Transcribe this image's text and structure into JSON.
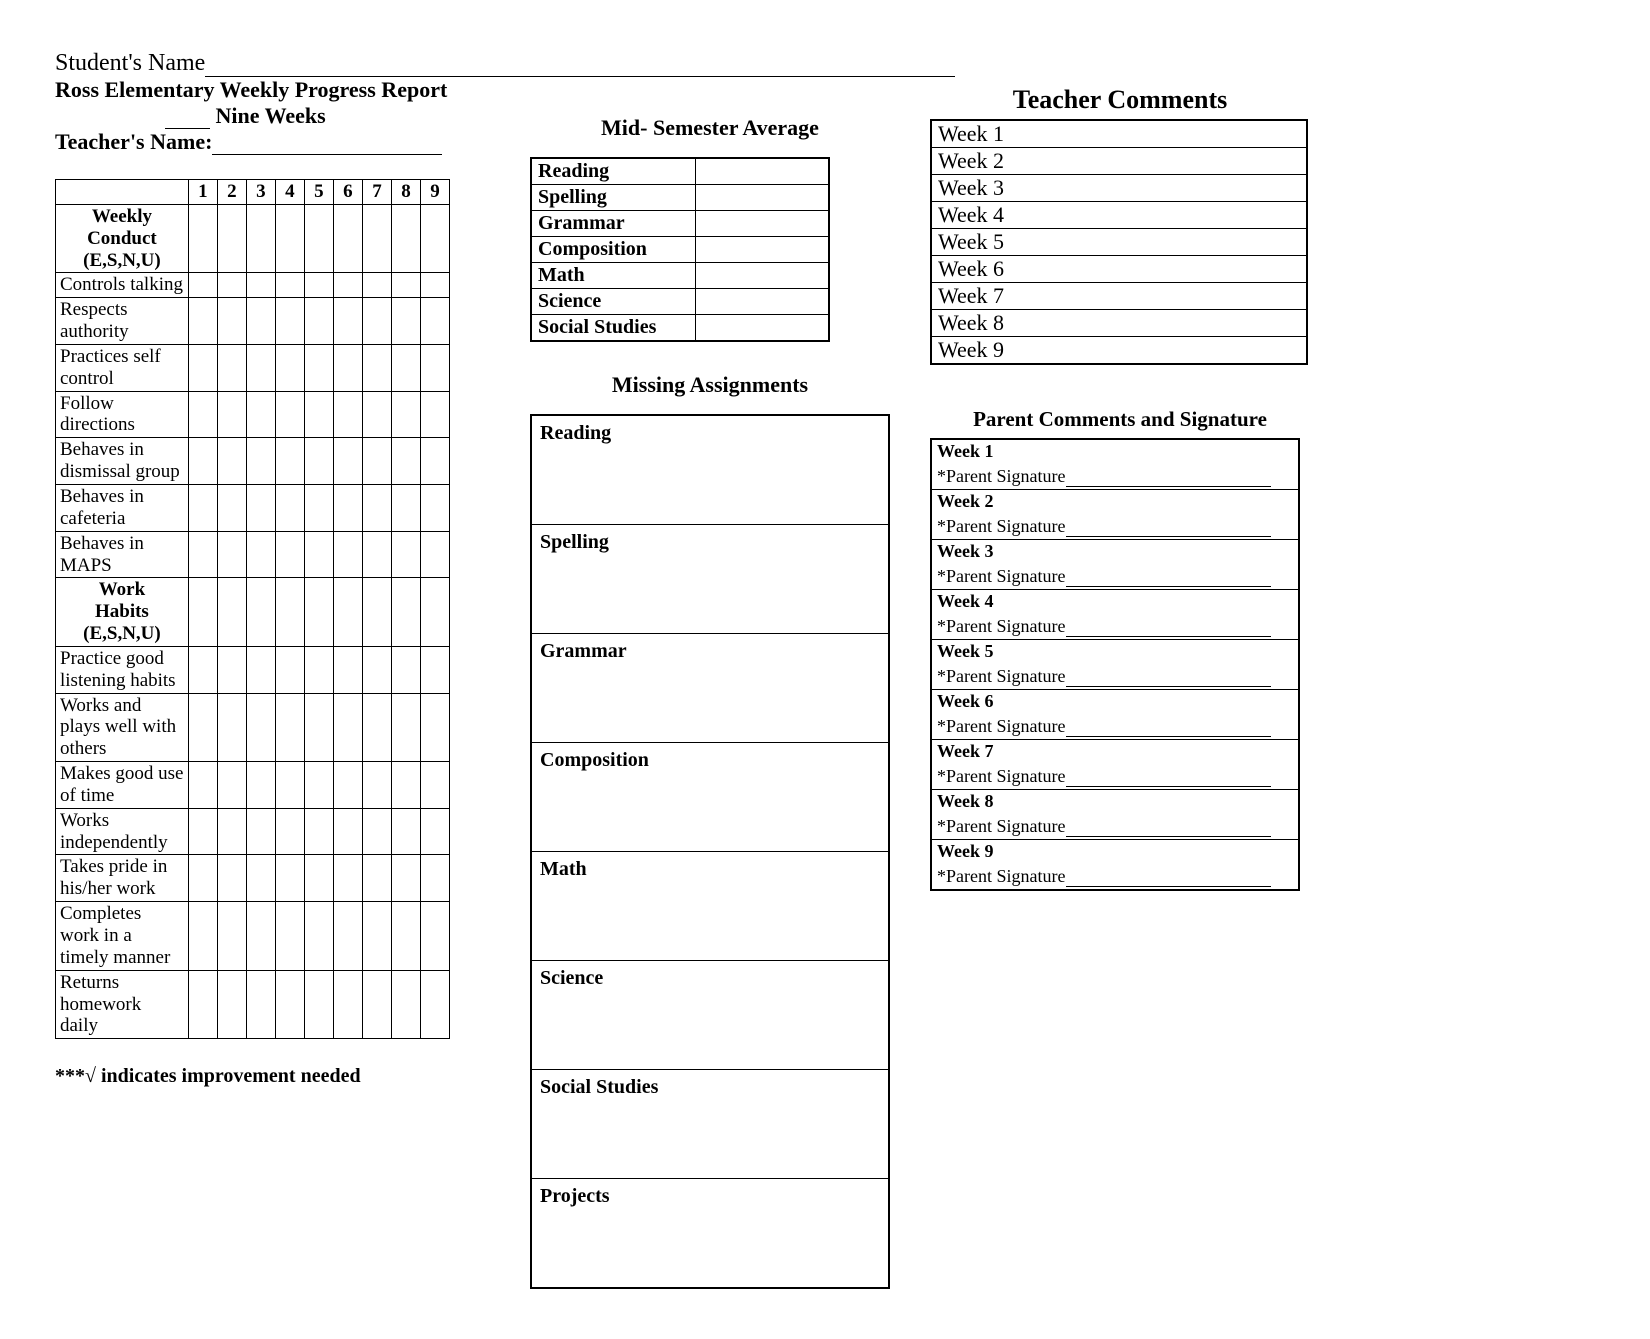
{
  "header": {
    "student_name_label": "Student's Name",
    "report_title": "Ross Elementary Weekly Progress Report",
    "nine_weeks_label": "Nine Weeks",
    "teacher_name_label": "Teacher's Name:"
  },
  "conduct_table": {
    "week_numbers": [
      "1",
      "2",
      "3",
      "4",
      "5",
      "6",
      "7",
      "8",
      "9"
    ],
    "section1_title": "Weekly Conduct (E,S,N,U)",
    "section1_rows": [
      "Controls talking",
      "Respects authority",
      "Practices self control",
      "Follow directions",
      "Behaves in dismissal group",
      "Behaves in cafeteria",
      "Behaves in MAPS"
    ],
    "section2_title": "Work Habits (E,S,N,U)",
    "section2_rows": [
      "Practice good listening habits",
      "Works and plays well with others",
      "Makes good use of time",
      "Works independently",
      "Takes pride in his/her work",
      "Completes work in a timely manner",
      "Returns homework daily"
    ]
  },
  "mid_semester": {
    "title": "Mid- Semester Average",
    "rows": [
      "Reading",
      "Spelling",
      "Grammar",
      "Composition",
      "Math",
      "Science",
      "Social Studies"
    ]
  },
  "missing": {
    "title": "Missing Assignments",
    "rows": [
      "Reading",
      "Spelling",
      "Grammar",
      "Composition",
      "Math",
      "Science",
      "Social Studies",
      "Projects"
    ]
  },
  "teacher_comments": {
    "title": "Teacher Comments",
    "rows": [
      "Week 1",
      "Week 2",
      "Week 3",
      "Week 4",
      "Week 5",
      "Week 6",
      "Week 7",
      "Week 8",
      "Week 9"
    ]
  },
  "parent_comments": {
    "title": "Parent Comments and Signature",
    "sig_label": "*Parent Signature",
    "rows": [
      "Week 1",
      "Week 2",
      "Week 3",
      "Week 4",
      "Week 5",
      "Week 6",
      "Week 7",
      "Week 8",
      "Week 9"
    ]
  },
  "footnote": "***√ indicates improvement needed"
}
